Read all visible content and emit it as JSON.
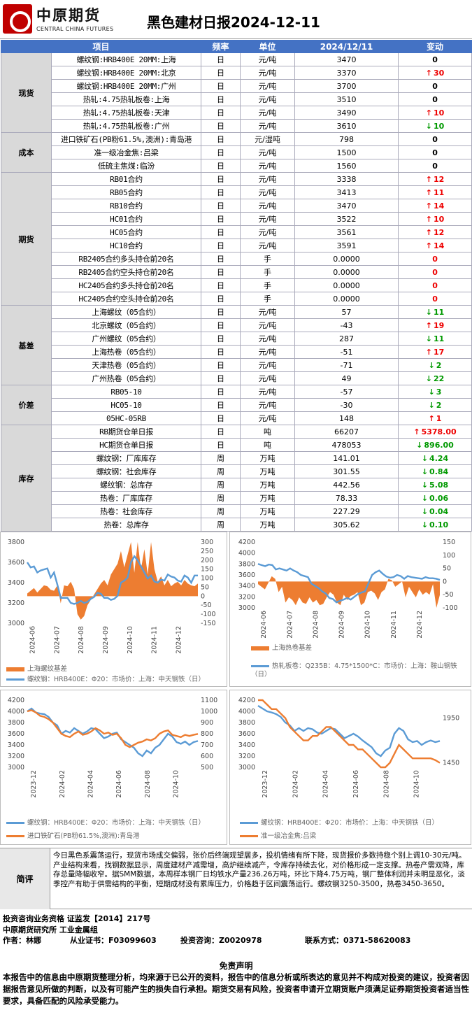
{
  "header": {
    "logo_cn": "中原期货",
    "logo_en": "CENTRAL CHINA FUTURES",
    "title": "黑色建材日报2024-12-11"
  },
  "table": {
    "columns": [
      "项目",
      "频率",
      "单位",
      "2024/12/11",
      "变动"
    ],
    "rows": [
      {
        "cat": "现货",
        "span": 6,
        "item": "螺纹钢:HRB400E 20MM:上海",
        "freq": "日",
        "unit": "元/吨",
        "val": "3470",
        "chg": "0",
        "dir": "flat"
      },
      {
        "item": "螺纹钢:HRB400E 20MM:北京",
        "freq": "日",
        "unit": "元/吨",
        "val": "3370",
        "chg": "30",
        "dir": "up"
      },
      {
        "item": "螺纹钢:HRB400E 20MM:广州",
        "freq": "日",
        "unit": "元/吨",
        "val": "3700",
        "chg": "0",
        "dir": "flat"
      },
      {
        "item": "热轧:4.75热轧板卷:上海",
        "freq": "日",
        "unit": "元/吨",
        "val": "3510",
        "chg": "0",
        "dir": "flat"
      },
      {
        "item": "热轧:4.75热轧板卷:天津",
        "freq": "日",
        "unit": "元/吨",
        "val": "3490",
        "chg": "10",
        "dir": "up"
      },
      {
        "item": "热轧:4.75热轧板卷:广州",
        "freq": "日",
        "unit": "元/吨",
        "val": "3610",
        "chg": "10",
        "dir": "down"
      },
      {
        "cat": "成本",
        "span": 3,
        "item": "进口铁矿石(PB粉61.5%,澳洲):青岛港",
        "freq": "日",
        "unit": "元/湿吨",
        "val": "798",
        "chg": "0",
        "dir": "flat"
      },
      {
        "item": "准一级冶金焦:吕梁",
        "freq": "日",
        "unit": "元/吨",
        "val": "1500",
        "chg": "0",
        "dir": "flat"
      },
      {
        "item": "低硫主焦煤:临汾",
        "freq": "日",
        "unit": "元/吨",
        "val": "1560",
        "chg": "0",
        "dir": "flat"
      },
      {
        "cat": "期货",
        "span": 10,
        "item": "RB01合约",
        "freq": "日",
        "unit": "元/吨",
        "val": "3338",
        "chg": "12",
        "dir": "up"
      },
      {
        "item": "RB05合约",
        "freq": "日",
        "unit": "元/吨",
        "val": "3413",
        "chg": "11",
        "dir": "up"
      },
      {
        "item": "RB10合约",
        "freq": "日",
        "unit": "元/吨",
        "val": "3470",
        "chg": "14",
        "dir": "up"
      },
      {
        "item": "HC01合约",
        "freq": "日",
        "unit": "元/吨",
        "val": "3522",
        "chg": "10",
        "dir": "up"
      },
      {
        "item": "HC05合约",
        "freq": "日",
        "unit": "元/吨",
        "val": "3561",
        "chg": "12",
        "dir": "up"
      },
      {
        "item": "HC10合约",
        "freq": "日",
        "unit": "元/吨",
        "val": "3591",
        "chg": "14",
        "dir": "up"
      },
      {
        "item": "RB2405合约多头持仓前20名",
        "freq": "日",
        "unit": "手",
        "val": "0.0000",
        "chg": "0",
        "dir": "zero"
      },
      {
        "item": "RB2405合约空头持仓前20名",
        "freq": "日",
        "unit": "手",
        "val": "0.0000",
        "chg": "0",
        "dir": "zero"
      },
      {
        "item": "HC2405合约多头持仓前20名",
        "freq": "日",
        "unit": "手",
        "val": "0.0000",
        "chg": "0",
        "dir": "zero"
      },
      {
        "item": "HC2405合约空头持仓前20名",
        "freq": "日",
        "unit": "手",
        "val": "0.0000",
        "chg": "0",
        "dir": "zero"
      },
      {
        "cat": "基差",
        "span": 6,
        "item": "上海螺纹（05合约）",
        "freq": "日",
        "unit": "元/吨",
        "val": "57",
        "chg": "11",
        "dir": "down"
      },
      {
        "item": "北京螺纹（05合约）",
        "freq": "日",
        "unit": "元/吨",
        "val": "-43",
        "chg": "19",
        "dir": "up"
      },
      {
        "item": "广州螺纹（05合约）",
        "freq": "日",
        "unit": "元/吨",
        "val": "287",
        "chg": "11",
        "dir": "down"
      },
      {
        "item": "上海热卷（05合约）",
        "freq": "日",
        "unit": "元/吨",
        "val": "-51",
        "chg": "17",
        "dir": "up"
      },
      {
        "item": "天津热卷（05合约）",
        "freq": "日",
        "unit": "元/吨",
        "val": "-71",
        "chg": "2",
        "dir": "down"
      },
      {
        "item": "广州热卷（05合约）",
        "freq": "日",
        "unit": "元/吨",
        "val": "49",
        "chg": "22",
        "dir": "down"
      },
      {
        "cat": "价差",
        "span": 3,
        "item": "RB05-10",
        "freq": "日",
        "unit": "元/吨",
        "val": "-57",
        "chg": "3",
        "dir": "down"
      },
      {
        "item": "HC05-10",
        "freq": "日",
        "unit": "元/吨",
        "val": "-30",
        "chg": "2",
        "dir": "down"
      },
      {
        "item": "05HC-05RB",
        "freq": "日",
        "unit": "元/吨",
        "val": "148",
        "chg": "1",
        "dir": "up"
      },
      {
        "cat": "库存",
        "span": 8,
        "item": "RB期货仓单日报",
        "freq": "日",
        "unit": "吨",
        "val": "66207",
        "chg": "5378.00",
        "dir": "up"
      },
      {
        "item": "HC期货仓单日报",
        "freq": "日",
        "unit": "吨",
        "val": "478053",
        "chg": "896.00",
        "dir": "down"
      },
      {
        "item": "螺纹钢：厂库库存",
        "freq": "周",
        "unit": "万吨",
        "val": "141.01",
        "chg": "4.24",
        "dir": "down"
      },
      {
        "item": "螺纹钢：社会库存",
        "freq": "周",
        "unit": "万吨",
        "val": "301.55",
        "chg": "0.84",
        "dir": "down"
      },
      {
        "item": "螺纹钢：总库存",
        "freq": "周",
        "unit": "万吨",
        "val": "442.56",
        "chg": "5.08",
        "dir": "down"
      },
      {
        "item": "热卷：厂库库存",
        "freq": "周",
        "unit": "万吨",
        "val": "78.33",
        "chg": "0.06",
        "dir": "down"
      },
      {
        "item": "热卷：社会库存",
        "freq": "周",
        "unit": "万吨",
        "val": "227.29",
        "chg": "0.04",
        "dir": "down"
      },
      {
        "item": "热卷：总库存",
        "freq": "周",
        "unit": "万吨",
        "val": "305.62",
        "chg": "0.10",
        "dir": "down"
      }
    ]
  },
  "colors": {
    "blue_line": "#5b9bd5",
    "orange": "#ed7d31",
    "up": "#ee0000",
    "down": "#009900",
    "header_blue": "#4472c4"
  },
  "chart_data": [
    {
      "type": "area",
      "left_ticks": [
        "3800",
        "3600",
        "3400",
        "3200",
        "3000"
      ],
      "ylim_left": [
        3000,
        3800
      ],
      "right_ticks": [
        "300",
        "250",
        "200",
        "150",
        "100",
        "50",
        "0",
        "-50",
        "-100",
        "-150"
      ],
      "ylim_right": [
        -150,
        300
      ],
      "xticks": [
        "2024-06",
        "2024-07",
        "2024-08",
        "2024-09",
        "2024-10",
        "2024-11",
        "2024-12"
      ],
      "series": [
        {
          "name": "上海螺纹基差",
          "kind": "area",
          "axis": "right",
          "values": [
            15,
            30,
            45,
            20,
            40,
            60,
            55,
            35,
            30,
            60,
            -40,
            60,
            55,
            80,
            40,
            -100,
            -130,
            -110,
            -50,
            -20,
            10,
            40,
            70,
            90,
            60,
            120,
            150,
            180,
            250,
            160,
            230,
            300,
            130,
            300,
            150,
            260,
            120,
            300,
            150,
            80,
            110,
            60,
            90,
            55,
            70,
            80,
            60,
            90,
            70,
            60,
            55,
            70
          ]
        },
        {
          "name": "螺纹钢：HRB400E：Φ20：市场价：上海：中天钢铁（日）",
          "kind": "line",
          "axis": "left",
          "values": [
            3600,
            3550,
            3560,
            3500,
            3520,
            3530,
            3540,
            3450,
            3500,
            3380,
            3250,
            3250,
            3250,
            3200,
            3190,
            3200,
            3220,
            3200,
            3210,
            3240,
            3260,
            3300,
            3290,
            3250,
            3250,
            3230,
            3240,
            3270,
            3400,
            3420,
            3450,
            3600,
            3660,
            3620,
            3560,
            3500,
            3440,
            3470,
            3410,
            3400,
            3430,
            3420,
            3480,
            3460,
            3450,
            3420,
            3410,
            3470,
            3450,
            3400,
            3470,
            3470
          ]
        }
      ]
    },
    {
      "type": "area",
      "left_ticks": [
        "4200",
        "4000",
        "3800",
        "3600",
        "3400",
        "3200",
        "3000"
      ],
      "ylim_left": [
        3000,
        4200
      ],
      "right_ticks": [
        "150",
        "100",
        "50",
        "0",
        "-50",
        "-100"
      ],
      "ylim_right": [
        -100,
        150
      ],
      "xticks": [
        "2024-06",
        "2024-07",
        "2024-08",
        "2024-09",
        "2024-10",
        "2024-11",
        "2024-12"
      ],
      "series": [
        {
          "name": "上海热卷基差",
          "kind": "area",
          "axis": "right",
          "values": [
            -10,
            -20,
            -30,
            -5,
            20,
            10,
            -40,
            -20,
            -80,
            -60,
            -70,
            -90,
            -60,
            -80,
            -85,
            -60,
            -80,
            -70,
            -90,
            -85,
            -60,
            -40,
            -50,
            -80,
            -90,
            -50,
            -70,
            -55,
            -50,
            -40,
            -90,
            -80,
            -40,
            -35,
            -45,
            -70,
            -40,
            -30,
            10,
            5,
            -20,
            -10,
            0,
            -60,
            -20,
            -40,
            -60,
            -30,
            -50,
            -40,
            -50,
            -10,
            -100,
            -51
          ]
        },
        {
          "name": "热轧板卷：Q235B：4.75*1500*C：市场价：上海：鞍山钢铁（日）",
          "kind": "line",
          "axis": "left",
          "values": [
            3800,
            3780,
            3760,
            3790,
            3780,
            3700,
            3720,
            3700,
            3680,
            3720,
            3680,
            3650,
            3600,
            3580,
            3560,
            3440,
            3400,
            3360,
            3300,
            3260,
            3180,
            3160,
            3100,
            3130,
            3150,
            3180,
            3150,
            3200,
            3250,
            3280,
            3300,
            3450,
            3600,
            3650,
            3680,
            3620,
            3570,
            3550,
            3560,
            3600,
            3580,
            3530,
            3580,
            3560,
            3550,
            3540,
            3530,
            3560,
            3540,
            3540,
            3530,
            3510
          ]
        }
      ]
    },
    {
      "type": "line",
      "left_ticks": [
        "4200",
        "4000",
        "3800",
        "3600",
        "3400",
        "3200",
        "3000"
      ],
      "ylim_left": [
        3000,
        4200
      ],
      "right_ticks": [
        "1100",
        "1000",
        "900",
        "800",
        "700",
        "600",
        "500"
      ],
      "ylim_right": [
        500,
        1100
      ],
      "xticks": [
        "2023-12",
        "2024-02",
        "2024-04",
        "2024-06",
        "2024-08",
        "2024-10"
      ],
      "series": [
        {
          "name": "螺纹钢：HRB400E：Φ20：市场价：上海：中天钢铁（日）",
          "axis": "left",
          "values": [
            4000,
            4050,
            3980,
            3960,
            3950,
            3900,
            3800,
            3750,
            3600,
            3650,
            3620,
            3700,
            3650,
            3600,
            3640,
            3700,
            3680,
            3600,
            3520,
            3550,
            3600,
            3620,
            3500,
            3450,
            3400,
            3350,
            3250,
            3200,
            3300,
            3250,
            3350,
            3400,
            3500,
            3600,
            3550,
            3450,
            3420,
            3460,
            3400,
            3450,
            3470
          ]
        },
        {
          "name": "进口铁矿石(PB粉61.5%,澳洲):青岛港",
          "axis": "right",
          "values": [
            1000,
            1010,
            990,
            960,
            950,
            930,
            900,
            850,
            800,
            780,
            770,
            800,
            820,
            790,
            800,
            820,
            850,
            830,
            800,
            810,
            790,
            800,
            760,
            700,
            680,
            700,
            720,
            730,
            750,
            740,
            760,
            800,
            820,
            830,
            790,
            780,
            770,
            790,
            780,
            790,
            798
          ]
        }
      ]
    },
    {
      "type": "line",
      "left_ticks": [
        "4200",
        "4000",
        "3800",
        "3600",
        "3400",
        "3200",
        "3000"
      ],
      "ylim_left": [
        3000,
        4200
      ],
      "right_ticks": [
        "1950",
        "1450"
      ],
      "ylim_right": [
        1400,
        2150
      ],
      "xticks": [
        "2023-12",
        "2024-02",
        "2024-04",
        "2024-06",
        "2024-08",
        "2024-10"
      ],
      "series": [
        {
          "name": "螺纹钢：HRB400E：Φ20：市场价：上海：中天钢铁（日）",
          "axis": "left",
          "values": [
            4100,
            4050,
            4000,
            3980,
            3950,
            3900,
            3800,
            3750,
            3650,
            3700,
            3650,
            3700,
            3680,
            3620,
            3600,
            3650,
            3700,
            3680,
            3600,
            3520,
            3560,
            3600,
            3550,
            3480,
            3420,
            3360,
            3250,
            3200,
            3300,
            3350,
            3600,
            3700,
            3650,
            3500,
            3450,
            3470,
            3400,
            3450,
            3480,
            3450,
            3470
          ]
        },
        {
          "name": "准一级冶金焦:吕梁",
          "axis": "right",
          "values": [
            2150,
            2150,
            2100,
            2050,
            2050,
            2000,
            1950,
            1850,
            1800,
            1750,
            1700,
            1700,
            1750,
            1750,
            1800,
            1850,
            1850,
            1800,
            1750,
            1700,
            1650,
            1650,
            1600,
            1600,
            1550,
            1500,
            1450,
            1400,
            1400,
            1450,
            1550,
            1650,
            1600,
            1550,
            1500,
            1500,
            1500,
            1500,
            1500,
            1480,
            1450
          ]
        }
      ]
    }
  ],
  "comment": {
    "label": "简评",
    "text": "今日黑色系震荡运行，现货市场成交偏弱，张价后终端观望居多，投机情绪有所下降，现货报价多数持稳个别上调10-30元/吨。产业结构来看，找钢数据显示，周度建材产减需增，高炉继续减产，令库存持续去化，对价格形成一定支撑。热卷产需双降，库存总量降幅收窄。据SMM数据，本周样本钢厂日均铁水产量236.26万吨，环比下降4.75万吨，钢厂整体利润并未明显恶化，淡季控产有助于供需结构的平衡，短期成材没有累库压力，价格趋于区间震荡运行。螺纹钢3250-3500，热卷3450-3650。"
  },
  "info": {
    "line1": "投资咨询业务资格   证监发【2014】217号",
    "line2": "中原期货研究所   工业金属组",
    "author_label": "作者：",
    "author": "林娜",
    "license_label": "从业证书：",
    "license": "F03099603",
    "consult_label": "投资咨询：",
    "consult": "Z0020978",
    "contact_label": "联系方式：",
    "contact": "0371-58620083"
  },
  "disclaimer": {
    "title": "免责声明",
    "text": "本报告中的信息由中原期货整理分析，均来源于已公开的资料，报告中的信息分析或所表达的意见并不构成对投资的建议，投资者因据报告意见所做的判断，以及有可能产生的损失自行承担。期货交易有风险，投资者申请开立期货账户须满足证券期货投资者适当性要求，具备匹配的风险承受能力。"
  }
}
